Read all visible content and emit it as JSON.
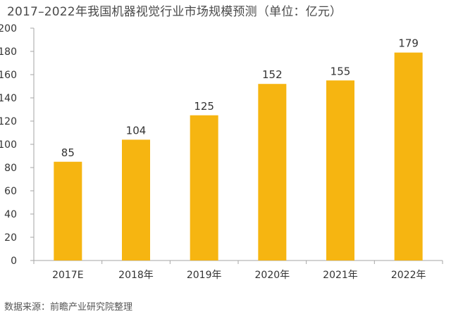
{
  "chart_data": {
    "type": "bar",
    "title": "2017–2022年我国机器视觉行业市场规模预测（单位：亿元）",
    "source": "数据来源：前瞻产业研究院整理",
    "categories": [
      "2017E",
      "2018年",
      "2019年",
      "2020年",
      "2021年",
      "2022年"
    ],
    "values": [
      85,
      104,
      125,
      152,
      155,
      179
    ],
    "data_labels": [
      "85",
      "104",
      "125",
      "152",
      "155",
      "179"
    ],
    "yticks": [
      "0",
      "20",
      "40",
      "60",
      "80",
      "100",
      "120",
      "140",
      "160",
      "180",
      "200"
    ],
    "ylim": [
      0,
      200
    ],
    "grid": false,
    "legend": false,
    "colors": {
      "bar": "#F6B511",
      "axis": "#a6a6a6",
      "text": "#333333"
    }
  }
}
